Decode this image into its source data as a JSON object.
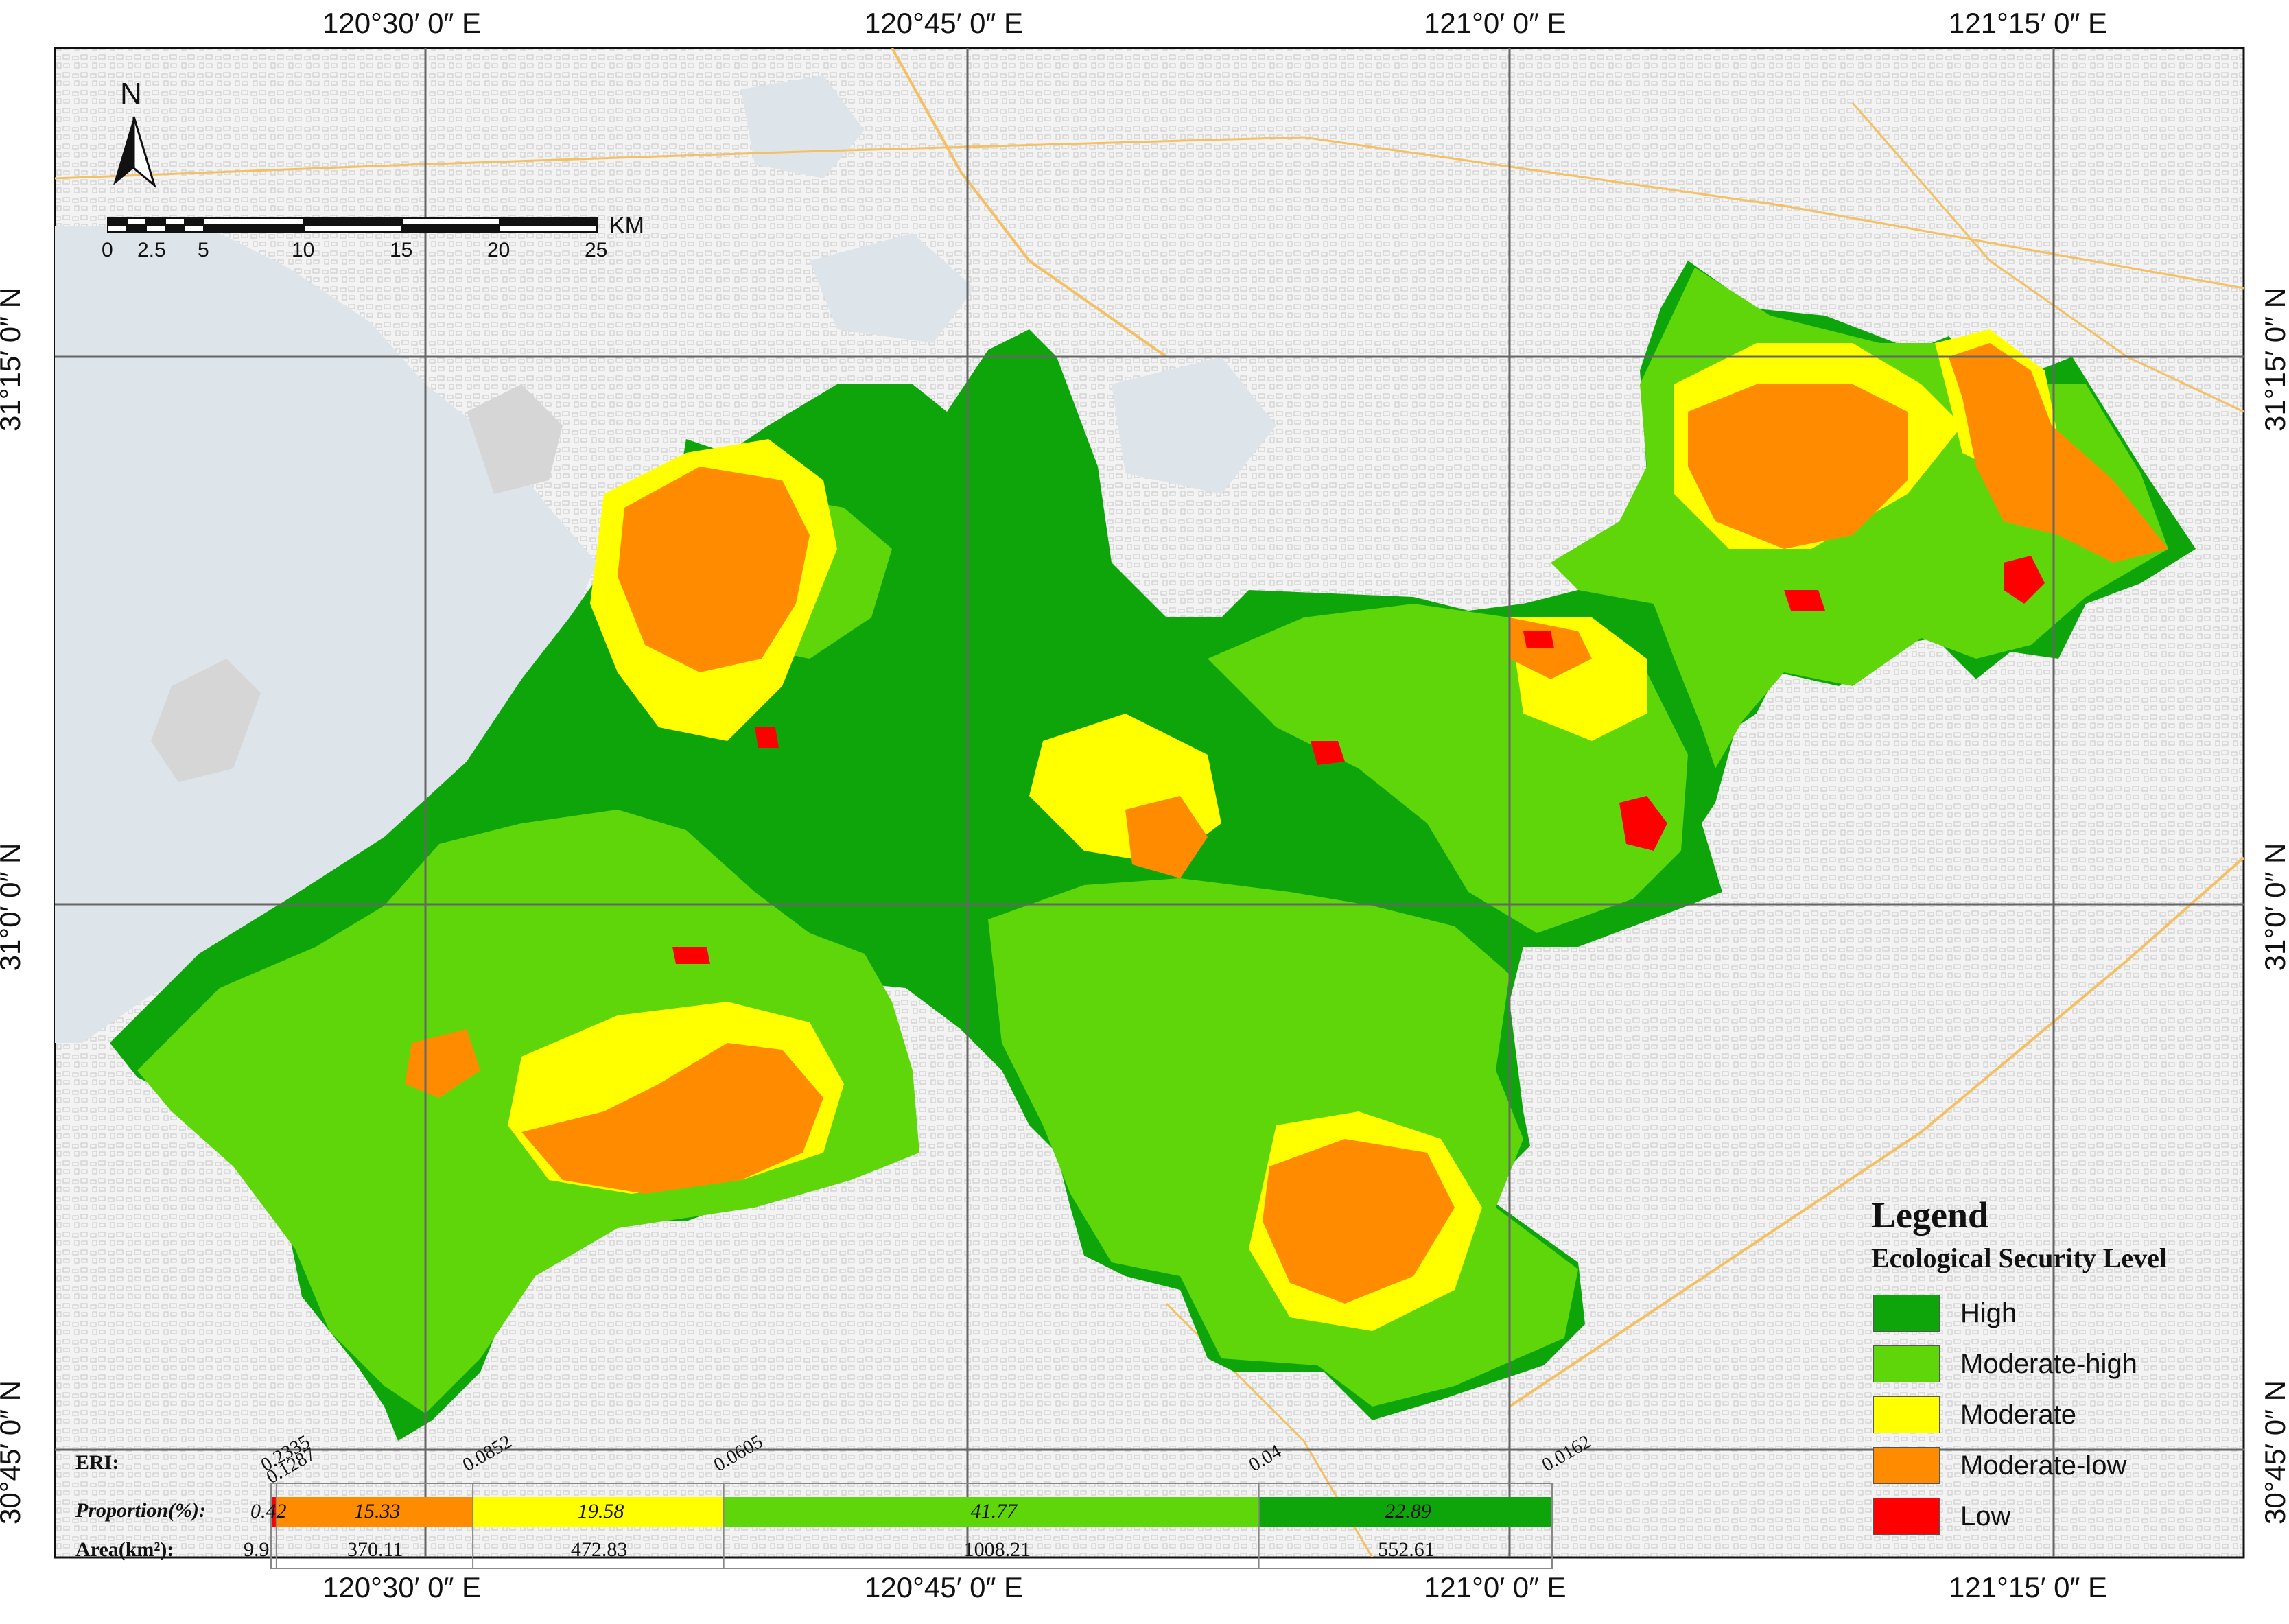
{
  "north_arrow": {
    "label": "N"
  },
  "scale_bar": {
    "unit": "KM",
    "ticks": [
      "0",
      "2.5",
      "5",
      "10",
      "15",
      "20",
      "25"
    ]
  },
  "graticule": {
    "top_longitudes": [
      "120°30′ 0″ E",
      "120°45′ 0″ E",
      "121°0′ 0″ E",
      "121°15′ 0″ E"
    ],
    "bottom_longitudes": [
      "120°30′ 0″ E",
      "120°45′ 0″ E",
      "121°0′ 0″ E",
      "121°15′ 0″ E"
    ],
    "left_latitudes": [
      "31°15′ 0″ N",
      "31°0′ 0″ N",
      "30°45′ 0″ N"
    ],
    "right_latitudes": [
      "31°15′ 0″ N",
      "31°0′ 0″ N",
      "30°45′ 0″ N"
    ]
  },
  "legend": {
    "title": "Legend",
    "subtitle": "Ecological Security Level",
    "items": [
      {
        "label": "High",
        "color": "#0ea50a"
      },
      {
        "label": "Moderate-high",
        "color": "#5ed60a"
      },
      {
        "label": "Moderate",
        "color": "#ffff00"
      },
      {
        "label": "Moderate-low",
        "color": "#ff8c00"
      },
      {
        "label": "Low",
        "color": "#ff0000"
      }
    ]
  },
  "eri_bar": {
    "eri_label": "ERI:",
    "proportion_label": "Proportion(%):",
    "area_label": "Area(km²):",
    "thresholds": [
      "0.2335",
      "0.1287",
      "0.0852",
      "0.0605",
      "0.04",
      "0.0162"
    ],
    "segments": [
      {
        "level": "Low",
        "proportion": 0.42,
        "proportion_text": "0.42",
        "area": 9.9,
        "area_text": "9.9",
        "color": "#ff0000"
      },
      {
        "level": "Moderate-low",
        "proportion": 15.33,
        "proportion_text": "15.33",
        "area": 370.11,
        "area_text": "370.11",
        "color": "#ff8c00"
      },
      {
        "level": "Moderate",
        "proportion": 19.58,
        "proportion_text": "19.58",
        "area": 472.83,
        "area_text": "472.83",
        "color": "#ffff00"
      },
      {
        "level": "Moderate-high",
        "proportion": 41.77,
        "proportion_text": "41.77",
        "area": 1008.21,
        "area_text": "1008.21",
        "color": "#5ed60a"
      },
      {
        "level": "High",
        "proportion": 22.89,
        "proportion_text": "22.89",
        "area": 552.61,
        "area_text": "552.61",
        "color": "#0ea50a"
      }
    ]
  },
  "colors": {
    "water": "#dde4ea",
    "land": "#f2f2f2",
    "road": "#f5c063",
    "grid": "#666666"
  }
}
